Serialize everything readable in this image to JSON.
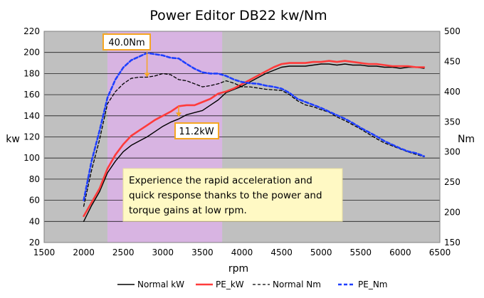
{
  "chart_data": {
    "type": "line",
    "title": "Power Editor DB22 kw/Nm",
    "xlabel": "rpm",
    "ylabel": "kw",
    "y2label": "Nm",
    "xlim": [
      1500,
      6500
    ],
    "ylim": [
      20,
      220
    ],
    "y2lim": [
      150,
      500
    ],
    "xticks": [
      1500,
      2000,
      2500,
      3000,
      3500,
      4000,
      4500,
      5000,
      5500,
      6000,
      6500
    ],
    "yticks": [
      20,
      40,
      60,
      80,
      100,
      120,
      140,
      160,
      180,
      200,
      220
    ],
    "y2ticks": [
      150,
      200,
      250,
      300,
      350,
      400,
      450,
      500
    ],
    "grid": "horizontal",
    "plot_background": "#c0c0c0",
    "highlight_range": {
      "x": [
        2300,
        3750
      ],
      "color": "#d8b4e2"
    },
    "legend_position": "bottom",
    "series": [
      {
        "name": "Normal kW",
        "axis": "left",
        "color": "#000000",
        "dash": "solid",
        "width": 1.4,
        "x": [
          2000,
          2100,
          2200,
          2300,
          2400,
          2500,
          2600,
          2700,
          2800,
          2900,
          3000,
          3100,
          3200,
          3300,
          3400,
          3500,
          3600,
          3700,
          3800,
          3900,
          4000,
          4100,
          4200,
          4300,
          4400,
          4500,
          4600,
          4700,
          4800,
          4900,
          5000,
          5100,
          5200,
          5300,
          5400,
          5500,
          5600,
          5700,
          5800,
          5900,
          6000,
          6100,
          6200,
          6300
        ],
        "values": [
          40,
          55,
          68,
          86,
          97,
          106,
          112,
          116,
          120,
          125,
          130,
          134,
          137,
          141,
          143,
          145,
          150,
          155,
          162,
          165,
          168,
          172,
          176,
          180,
          183,
          186,
          187,
          187,
          187,
          188,
          189,
          189,
          188,
          189,
          188,
          188,
          187,
          187,
          186,
          186,
          185,
          186,
          186,
          185
        ]
      },
      {
        "name": "PE_kW",
        "axis": "left",
        "color": "#ff3b3b",
        "dash": "solid",
        "width": 2.6,
        "x": [
          2000,
          2100,
          2200,
          2300,
          2400,
          2500,
          2600,
          2700,
          2800,
          2900,
          3000,
          3100,
          3200,
          3300,
          3400,
          3500,
          3600,
          3700,
          3800,
          3900,
          4000,
          4100,
          4200,
          4300,
          4400,
          4500,
          4600,
          4700,
          4800,
          4900,
          5000,
          5100,
          5200,
          5300,
          5400,
          5500,
          5600,
          5700,
          5800,
          5900,
          6000,
          6100,
          6200,
          6300
        ],
        "values": [
          45,
          58,
          71,
          90,
          103,
          113,
          121,
          126,
          131,
          136,
          140,
          144,
          149,
          150,
          150,
          153,
          156,
          161,
          163,
          166,
          170,
          174,
          178,
          182,
          186,
          189,
          190,
          190,
          190,
          191,
          191,
          192,
          191,
          192,
          191,
          190,
          189,
          189,
          188,
          187,
          187,
          187,
          186,
          186
        ]
      },
      {
        "name": "Normal Nm",
        "axis": "right",
        "color": "#000000",
        "dash": "4,3",
        "width": 1.3,
        "x": [
          2000,
          2100,
          2200,
          2300,
          2400,
          2500,
          2600,
          2700,
          2800,
          2900,
          3000,
          3100,
          3200,
          3300,
          3400,
          3500,
          3600,
          3700,
          3800,
          3900,
          4000,
          4100,
          4200,
          4300,
          4400,
          4500,
          4600,
          4700,
          4800,
          4900,
          5000,
          5100,
          5200,
          5300,
          5400,
          5500,
          5600,
          5700,
          5800,
          5900,
          6000,
          6100,
          6200,
          6300
        ],
        "values": [
          210,
          270,
          320,
          380,
          400,
          413,
          422,
          424,
          424,
          426,
          430,
          428,
          420,
          418,
          413,
          408,
          410,
          413,
          418,
          414,
          408,
          408,
          406,
          404,
          403,
          402,
          395,
          385,
          378,
          375,
          370,
          366,
          358,
          352,
          345,
          338,
          330,
          322,
          315,
          310,
          305,
          300,
          296,
          292
        ]
      },
      {
        "name": "PE_Nm",
        "axis": "right",
        "color": "#1f3fff",
        "dash": "5,3",
        "width": 2.6,
        "x": [
          2000,
          2100,
          2200,
          2300,
          2400,
          2500,
          2600,
          2700,
          2800,
          2900,
          3000,
          3100,
          3200,
          3300,
          3400,
          3500,
          3600,
          3700,
          3800,
          3900,
          4000,
          4100,
          4200,
          4300,
          4400,
          4500,
          4600,
          4700,
          4800,
          4900,
          5000,
          5100,
          5200,
          5300,
          5400,
          5500,
          5600,
          5700,
          5800,
          5900,
          6000,
          6100,
          6200,
          6300
        ],
        "values": [
          220,
          285,
          335,
          390,
          420,
          440,
          452,
          458,
          464,
          462,
          460,
          456,
          455,
          446,
          438,
          432,
          430,
          430,
          426,
          420,
          416,
          414,
          413,
          410,
          408,
          405,
          398,
          388,
          383,
          378,
          373,
          367,
          361,
          355,
          348,
          340,
          333,
          326,
          318,
          312,
          306,
          301,
          298,
          293
        ]
      }
    ],
    "annotations": [
      {
        "text": "40.0Nm",
        "border": "#f5a623",
        "arrow_x": 2800,
        "arrow_top": 467,
        "arrow_bottom": 424,
        "axis": "right"
      },
      {
        "text": "11.2kW",
        "border": "#f5a623",
        "arrow_x": 3200,
        "arrow_top": 149,
        "arrow_bottom": 139,
        "axis": "left"
      }
    ],
    "callout": {
      "text": "Experience the rapid acceleration and quick response thanks to the power and torque gains at low rpm.",
      "lines": [
        "Experience the rapid acceleration and",
        "quick response thanks to the power and",
        "torque gains at low rpm."
      ],
      "background": "#fff9c4"
    }
  }
}
